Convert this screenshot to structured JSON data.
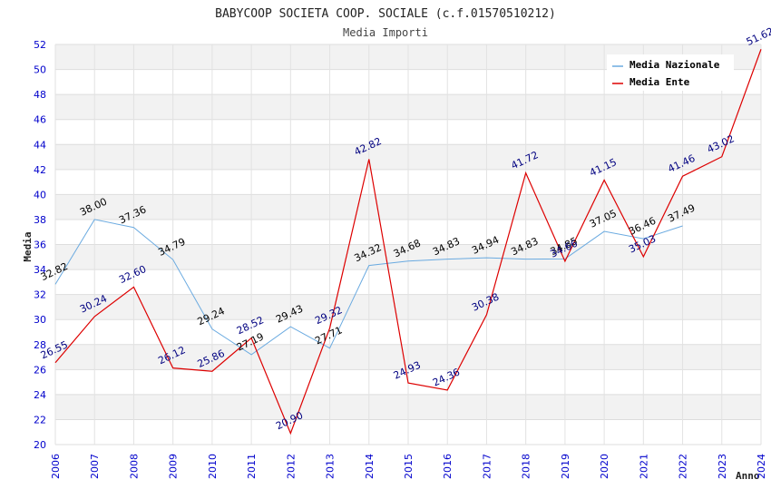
{
  "chart_data": {
    "type": "line",
    "title": "BABYCOOP SOCIETA COOP. SOCIALE (c.f.01570510212)",
    "subtitle": "Media Importi",
    "xlabel": "Anno",
    "ylabel": "Media",
    "x": [
      2006,
      2007,
      2008,
      2009,
      2010,
      2011,
      2012,
      2013,
      2014,
      2015,
      2016,
      2017,
      2018,
      2019,
      2020,
      2021,
      2022,
      2023,
      2024
    ],
    "ylim": [
      20,
      52
    ],
    "yticks": [
      20,
      22,
      24,
      26,
      28,
      30,
      32,
      34,
      36,
      38,
      40,
      42,
      44,
      46,
      48,
      50,
      52
    ],
    "grid": true,
    "legend_position": "top-right",
    "series": [
      {
        "name": "Media Nazionale",
        "color": "#6aaae0",
        "label_color": "#000000",
        "values": [
          32.82,
          38.0,
          37.36,
          34.79,
          29.24,
          27.19,
          29.43,
          27.71,
          34.32,
          34.68,
          34.83,
          34.94,
          34.83,
          34.85,
          37.05,
          36.46,
          37.49,
          null,
          null
        ],
        "labels": [
          "32.82",
          "38.00",
          "37.36",
          "34.79",
          "29.24",
          "27.19",
          "29.43",
          "27.71",
          "34.32",
          "34.68",
          "34.83",
          "34.94",
          "34.83",
          "34.85",
          "37.05",
          "36.46",
          "37.49",
          null,
          null
        ]
      },
      {
        "name": "Media Ente",
        "color": "#dd0000",
        "label_color": "#000080",
        "values": [
          26.55,
          30.24,
          32.6,
          26.12,
          25.86,
          28.52,
          20.9,
          29.32,
          42.82,
          24.93,
          24.36,
          30.38,
          41.72,
          34.66,
          41.15,
          35.03,
          41.46,
          43.02,
          51.62
        ],
        "labels": [
          "26.55",
          "30.24",
          "32.60",
          "26.12",
          "25.86",
          "28.52",
          "20.90",
          "29.32",
          "42.82",
          "24.93",
          "24.36",
          "30.38",
          "41.72",
          "34.66",
          "41.15",
          "35.03",
          "41.46",
          "43.02",
          "51.62"
        ]
      }
    ]
  }
}
